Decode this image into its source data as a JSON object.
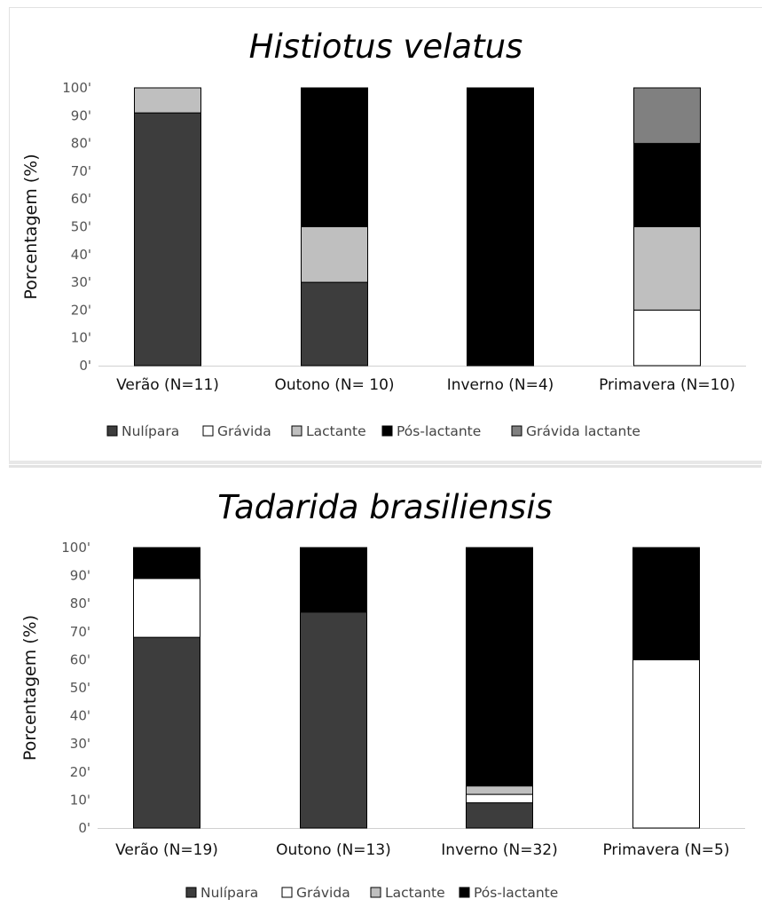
{
  "chart_data": [
    {
      "type": "bar",
      "stacked": true,
      "title": "Histiotus velatus",
      "ylabel": "Porcentagem (%)",
      "xlabel": "",
      "ylim": [
        0,
        100
      ],
      "yticks": [
        "0'",
        "10'",
        "20'",
        "30'",
        "40'",
        "50'",
        "60'",
        "70'",
        "80'",
        "90'",
        "100'"
      ],
      "categories": [
        "Verão (N=11)",
        "Outono (N= 10)",
        "Inverno (N=4)",
        "Primavera (N=10)"
      ],
      "legend_position": "bottom",
      "series": [
        {
          "name": "Nulípara",
          "color": "#3d3d3d",
          "values": [
            91,
            30,
            0,
            0
          ]
        },
        {
          "name": "Grávida",
          "color": "#ffffff",
          "values": [
            0,
            0,
            0,
            20
          ]
        },
        {
          "name": "Lactante",
          "color": "#bfbfbf",
          "values": [
            9,
            20,
            0,
            30
          ]
        },
        {
          "name": "Pós-lactante",
          "color": "#000000",
          "values": [
            0,
            50,
            100,
            30
          ]
        },
        {
          "name": "Grávida lactante",
          "color": "#808080",
          "values": [
            0,
            0,
            0,
            20
          ]
        }
      ]
    },
    {
      "type": "bar",
      "stacked": true,
      "title": "Tadarida brasiliensis",
      "ylabel": "Porcentagem (%)",
      "xlabel": "",
      "ylim": [
        0,
        100
      ],
      "yticks": [
        "0'",
        "10'",
        "20'",
        "30'",
        "40'",
        "50'",
        "60'",
        "70'",
        "80'",
        "90'",
        "100'"
      ],
      "categories": [
        "Verão (N=19)",
        "Outono (N=13)",
        "Inverno (N=32)",
        "Primavera (N=5)"
      ],
      "legend_position": "bottom",
      "series": [
        {
          "name": "Nulípara",
          "color": "#3d3d3d",
          "values": [
            68,
            77,
            9,
            0
          ]
        },
        {
          "name": "Grávida",
          "color": "#ffffff",
          "values": [
            21,
            0,
            3,
            60
          ]
        },
        {
          "name": "Lactante",
          "color": "#bfbfbf",
          "values": [
            0,
            0,
            3,
            0
          ]
        },
        {
          "name": "Pós-lactante",
          "color": "#000000",
          "values": [
            11,
            23,
            85,
            40
          ]
        }
      ]
    }
  ]
}
